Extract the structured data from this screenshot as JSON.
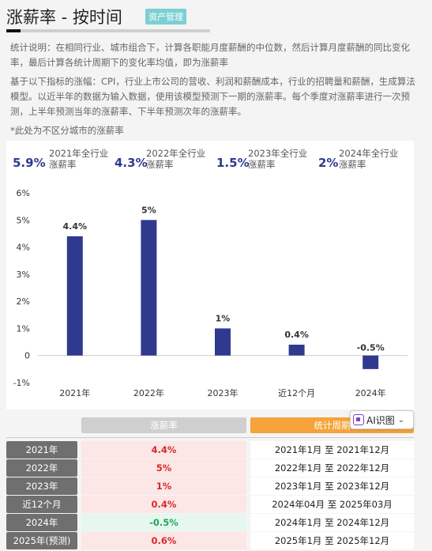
{
  "header": {
    "title": "涨薪率 - 按时间",
    "badge": "资产管理"
  },
  "description": {
    "p1": "统计说明：在相同行业、城市组合下，计算各职能月度薪酬的中位数，然后计算月度薪酬的同比变化率，最后计算各统计周期下的变化率均值，即为涨薪率",
    "p2": "基于以下指标的涨幅：CPI，行业上市公司的营收、利润和薪酬成本，行业的招聘量和薪酬，生成算法模型。以近半年的数据为输入数据，使用该模型预测下一期的涨薪率。每个季度对涨薪率进行一次预测，上半年预测当年的涨薪率、下半年预测次年的涨薪率。",
    "p3": "*此处为不区分城市的涨薪率"
  },
  "summary": [
    {
      "value": "5.9%",
      "label_line1": "2021年全行业",
      "label_line2": "涨薪率"
    },
    {
      "value": "4.3%",
      "label_line1": "2022年全行业",
      "label_line2": "涨薪率"
    },
    {
      "value": "1.5%",
      "label_line1": "2023年全行业",
      "label_line2": "涨薪率"
    },
    {
      "value": "2%",
      "label_line1": "2024年全行业",
      "label_line2": "涨薪率"
    }
  ],
  "chart_data": {
    "type": "bar",
    "categories": [
      "2021年",
      "2022年",
      "2023年",
      "近12个月",
      "2024年"
    ],
    "values": [
      4.4,
      5,
      1,
      0.4,
      -0.5
    ],
    "data_labels": [
      "4.4%",
      "5%",
      "1%",
      "0.4%",
      "-0.5%"
    ],
    "y_ticks": [
      "6%",
      "5%",
      "4%",
      "3%",
      "2%",
      "1%",
      "0",
      "-1%"
    ],
    "ylim": [
      -1,
      6
    ],
    "bar_color": "#2f3a8f",
    "grid": false,
    "legend": "none"
  },
  "table": {
    "header_rate": "涨薪率",
    "header_period": "统计周期",
    "ai_button": "AI识图",
    "rows": [
      {
        "year": "2021年",
        "rate": "4.4%",
        "period": "2021年1月 至 2021年12月"
      },
      {
        "year": "2022年",
        "rate": "5%",
        "period": "2022年1月 至 2022年12月"
      },
      {
        "year": "2023年",
        "rate": "1%",
        "period": "2023年1月 至 2023年12月"
      },
      {
        "year": "近12个月",
        "rate": "0.4%",
        "period": "2024年04月 至 2025年03月"
      },
      {
        "year": "2024年",
        "rate": "-0.5%",
        "period": "2024年1月 至 2024年12月"
      },
      {
        "year": "2025年(预测)",
        "rate": "0.6%",
        "period": "2025年1月 至 2025年12月"
      }
    ]
  },
  "colors": {
    "accent": "#2f3a8f",
    "positive": "#d62a2a",
    "negative": "#22a55a",
    "badge": "#7ccfd3",
    "period_header": "#f5a33a"
  }
}
